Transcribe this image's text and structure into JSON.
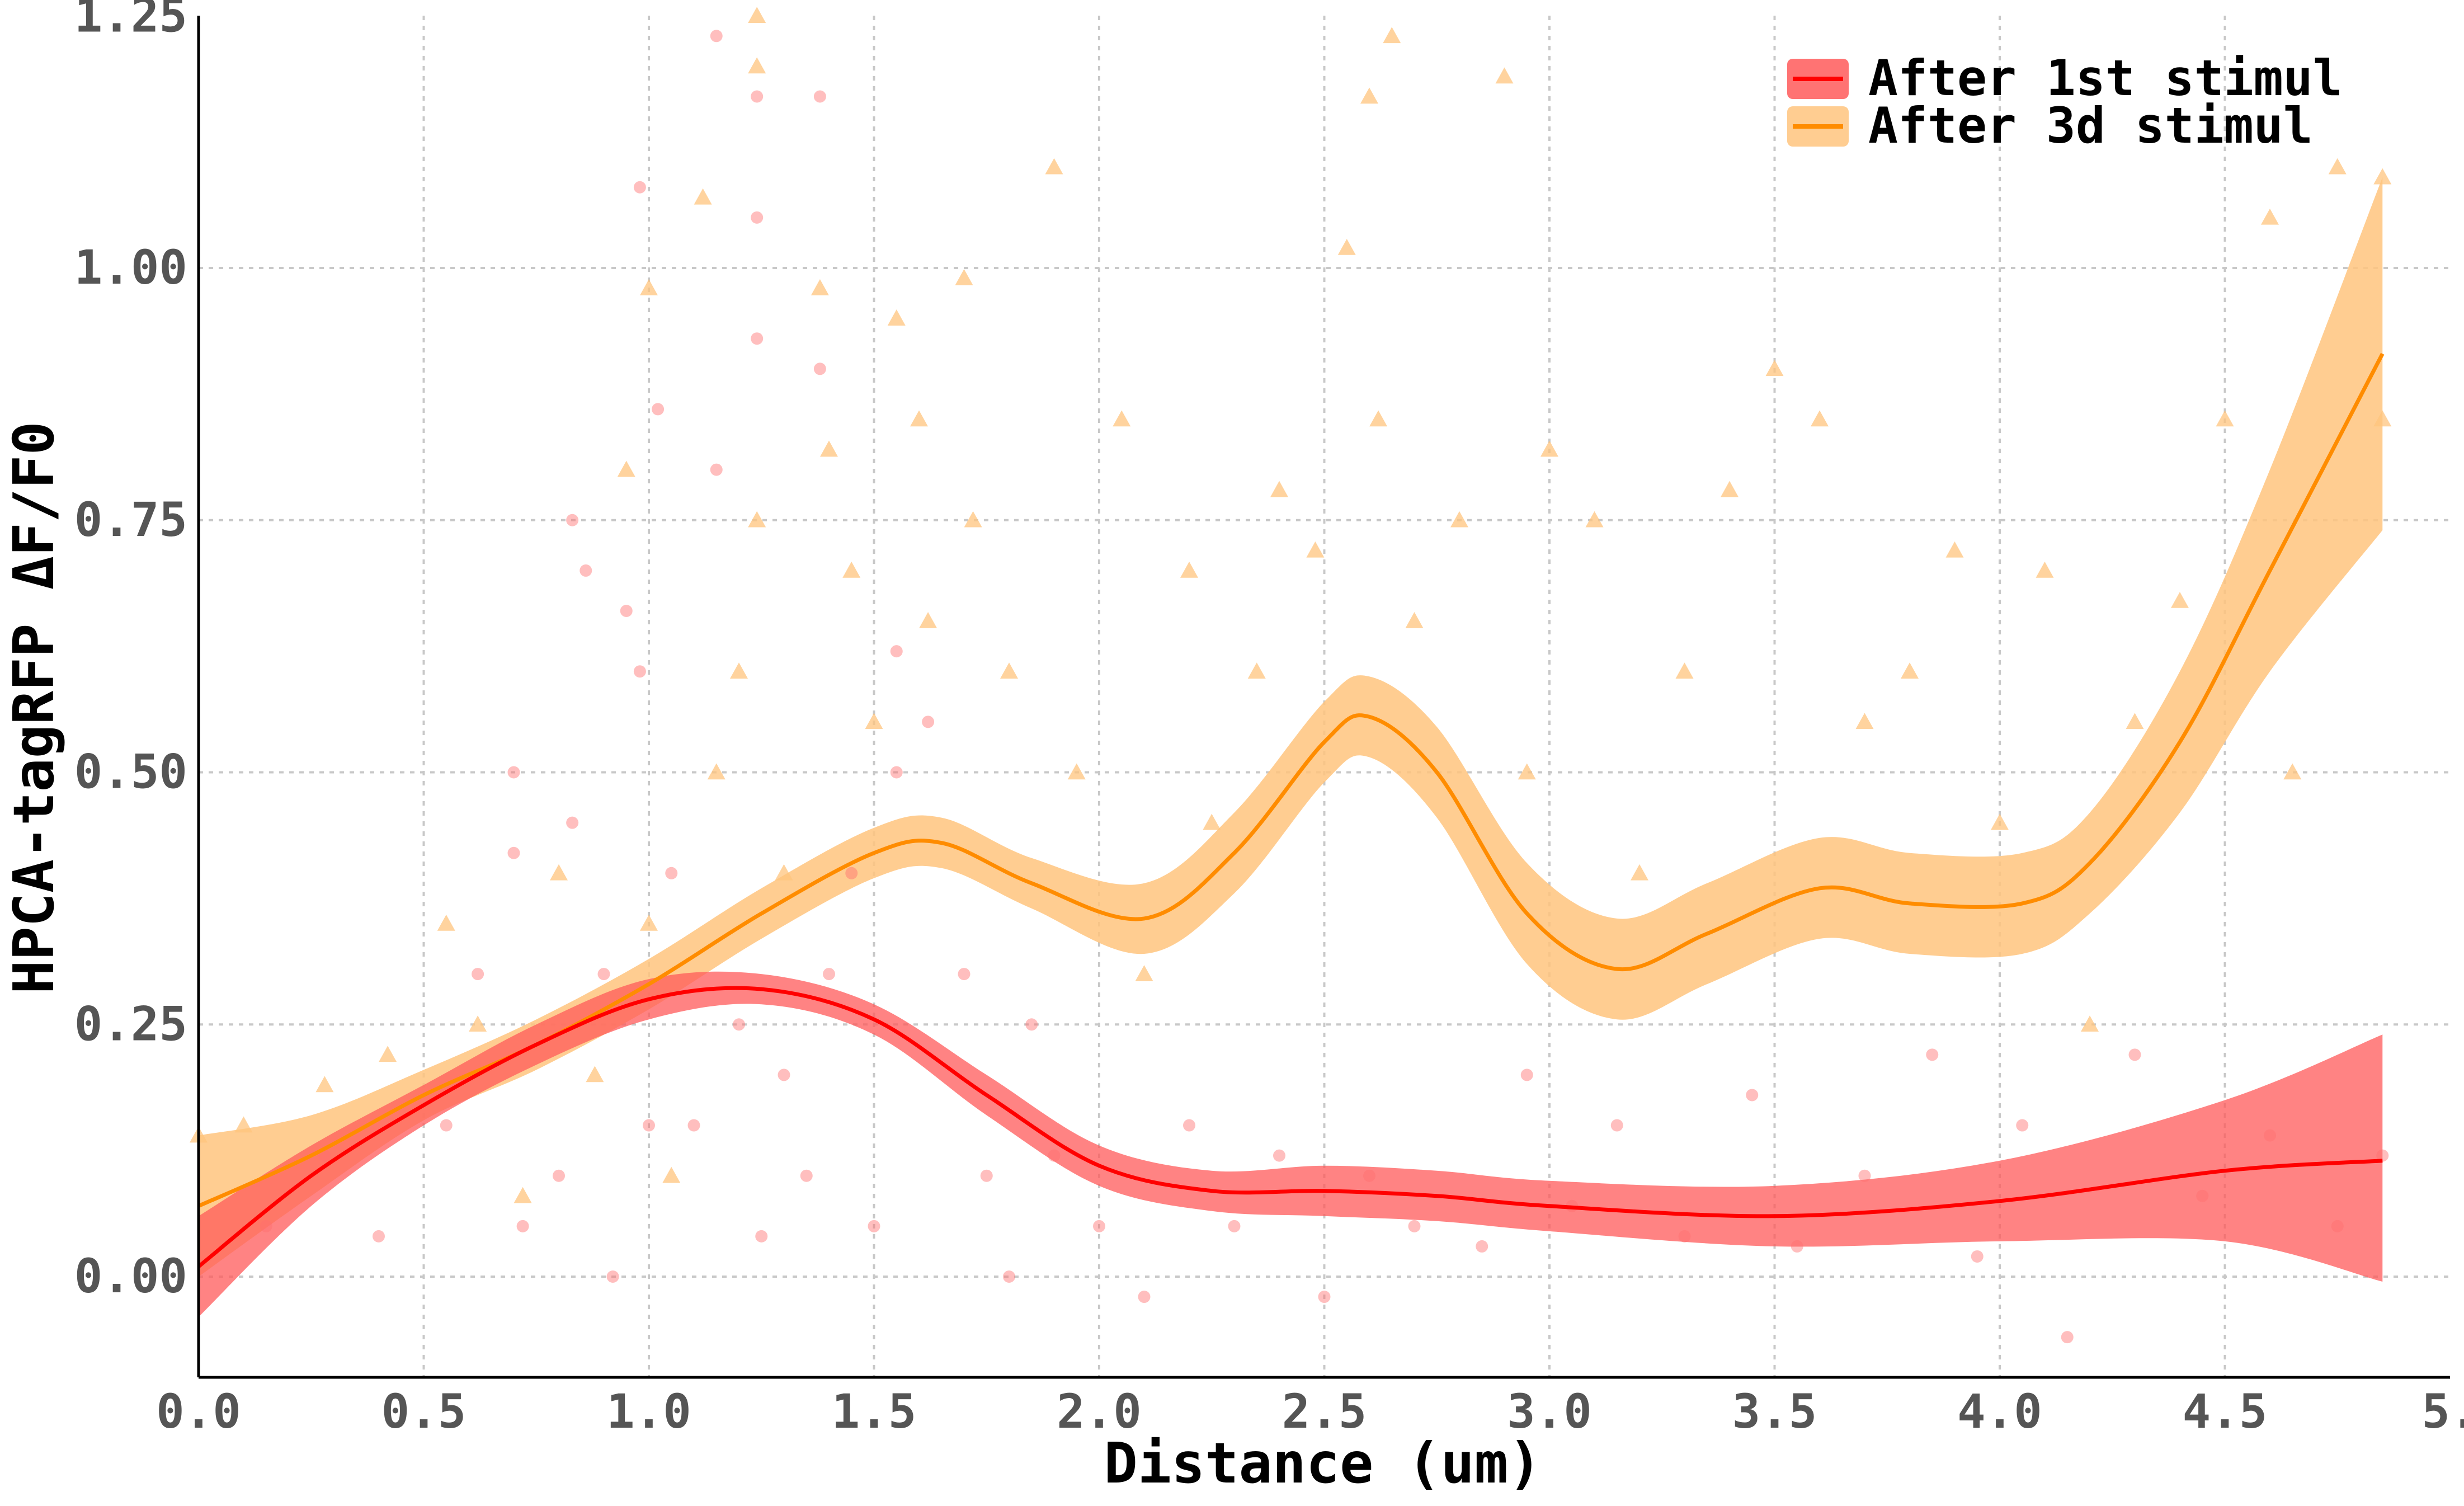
{
  "chart_data": {
    "type": "scatter",
    "title": "",
    "xlabel": "Distance (um)",
    "ylabel": "HPCA-tagRFP ΔF/F0",
    "xlim": [
      0.0,
      5.0
    ],
    "ylim": [
      -0.1,
      1.25
    ],
    "x_ticks": [
      "0.0",
      "0.5",
      "1.0",
      "1.5",
      "2.0",
      "2.5",
      "3.0",
      "3.5",
      "4.0",
      "4.5",
      "5."
    ],
    "y_ticks": [
      "0.00",
      "0.25",
      "0.50",
      "0.75",
      "1.00",
      "1.25"
    ],
    "grid": true,
    "legend_position": "top-right",
    "series": [
      {
        "name": "After 1st stimul",
        "color": "#ff0000",
        "band_color": "#ff5a5a",
        "marker": "circle",
        "fit": [
          [
            0.0,
            0.01
          ],
          [
            0.25,
            0.1
          ],
          [
            0.5,
            0.17
          ],
          [
            0.75,
            0.23
          ],
          [
            1.0,
            0.275
          ],
          [
            1.25,
            0.285
          ],
          [
            1.5,
            0.255
          ],
          [
            1.75,
            0.18
          ],
          [
            2.0,
            0.11
          ],
          [
            2.25,
            0.085
          ],
          [
            2.5,
            0.085
          ],
          [
            2.75,
            0.08
          ],
          [
            3.0,
            0.07
          ],
          [
            3.5,
            0.06
          ],
          [
            4.0,
            0.075
          ],
          [
            4.5,
            0.105
          ],
          [
            4.85,
            0.115
          ]
        ],
        "band_upper": [
          [
            0.0,
            0.06
          ],
          [
            0.25,
            0.13
          ],
          [
            0.5,
            0.19
          ],
          [
            0.75,
            0.25
          ],
          [
            1.0,
            0.295
          ],
          [
            1.25,
            0.3
          ],
          [
            1.5,
            0.27
          ],
          [
            1.75,
            0.2
          ],
          [
            2.0,
            0.13
          ],
          [
            2.25,
            0.105
          ],
          [
            2.5,
            0.11
          ],
          [
            2.75,
            0.105
          ],
          [
            3.0,
            0.095
          ],
          [
            3.5,
            0.09
          ],
          [
            4.0,
            0.115
          ],
          [
            4.5,
            0.175
          ],
          [
            4.85,
            0.24
          ]
        ],
        "band_lower": [
          [
            0.0,
            -0.04
          ],
          [
            0.25,
            0.07
          ],
          [
            0.5,
            0.15
          ],
          [
            0.75,
            0.21
          ],
          [
            1.0,
            0.255
          ],
          [
            1.25,
            0.27
          ],
          [
            1.5,
            0.24
          ],
          [
            1.75,
            0.16
          ],
          [
            2.0,
            0.09
          ],
          [
            2.25,
            0.065
          ],
          [
            2.5,
            0.06
          ],
          [
            2.75,
            0.055
          ],
          [
            3.0,
            0.045
          ],
          [
            3.5,
            0.03
          ],
          [
            4.0,
            0.035
          ],
          [
            4.5,
            0.035
          ],
          [
            4.85,
            -0.005
          ]
        ],
        "points": [
          [
            0.15,
            0.05
          ],
          [
            0.28,
            0.12
          ],
          [
            0.4,
            0.04
          ],
          [
            0.55,
            0.15
          ],
          [
            0.62,
            0.3
          ],
          [
            0.7,
            0.5
          ],
          [
            0.7,
            0.42
          ],
          [
            0.72,
            0.05
          ],
          [
            0.8,
            0.1
          ],
          [
            0.83,
            0.75
          ],
          [
            0.83,
            0.45
          ],
          [
            0.86,
            0.7
          ],
          [
            0.9,
            0.3
          ],
          [
            0.92,
            0.0
          ],
          [
            0.95,
            0.66
          ],
          [
            0.98,
            1.08
          ],
          [
            0.98,
            0.6
          ],
          [
            1.0,
            0.15
          ],
          [
            1.02,
            0.86
          ],
          [
            1.05,
            0.4
          ],
          [
            1.1,
            0.15
          ],
          [
            1.15,
            1.23
          ],
          [
            1.15,
            0.8
          ],
          [
            1.2,
            0.25
          ],
          [
            1.24,
            1.17
          ],
          [
            1.24,
            1.05
          ],
          [
            1.24,
            0.93
          ],
          [
            1.25,
            0.04
          ],
          [
            1.3,
            0.2
          ],
          [
            1.35,
            0.1
          ],
          [
            1.38,
            1.17
          ],
          [
            1.38,
            0.9
          ],
          [
            1.4,
            0.3
          ],
          [
            1.45,
            0.4
          ],
          [
            1.5,
            0.05
          ],
          [
            1.55,
            0.62
          ],
          [
            1.55,
            0.5
          ],
          [
            1.62,
            0.55
          ],
          [
            1.7,
            0.3
          ],
          [
            1.75,
            0.1
          ],
          [
            1.8,
            0.0
          ],
          [
            1.85,
            0.25
          ],
          [
            1.9,
            0.12
          ],
          [
            2.0,
            0.05
          ],
          [
            2.1,
            -0.02
          ],
          [
            2.2,
            0.15
          ],
          [
            2.3,
            0.05
          ],
          [
            2.4,
            0.12
          ],
          [
            2.5,
            -0.02
          ],
          [
            2.6,
            0.1
          ],
          [
            2.7,
            0.05
          ],
          [
            2.85,
            0.03
          ],
          [
            2.95,
            0.2
          ],
          [
            3.05,
            0.07
          ],
          [
            3.15,
            0.15
          ],
          [
            3.3,
            0.04
          ],
          [
            3.45,
            0.18
          ],
          [
            3.55,
            0.03
          ],
          [
            3.7,
            0.1
          ],
          [
            3.85,
            0.22
          ],
          [
            3.95,
            0.02
          ],
          [
            4.05,
            0.15
          ],
          [
            4.15,
            -0.06
          ],
          [
            4.3,
            0.22
          ],
          [
            4.45,
            0.08
          ],
          [
            4.6,
            0.14
          ],
          [
            4.75,
            0.05
          ],
          [
            4.85,
            0.12
          ]
        ]
      },
      {
        "name": "After 3d stimul",
        "color": "#ff8c00",
        "band_color": "#ffc47e",
        "marker": "triangle",
        "fit": [
          [
            0.0,
            0.07
          ],
          [
            0.25,
            0.12
          ],
          [
            0.5,
            0.18
          ],
          [
            0.75,
            0.23
          ],
          [
            1.0,
            0.29
          ],
          [
            1.25,
            0.36
          ],
          [
            1.5,
            0.42
          ],
          [
            1.65,
            0.43
          ],
          [
            1.85,
            0.39
          ],
          [
            2.1,
            0.355
          ],
          [
            2.3,
            0.42
          ],
          [
            2.5,
            0.53
          ],
          [
            2.6,
            0.555
          ],
          [
            2.75,
            0.5
          ],
          [
            2.95,
            0.36
          ],
          [
            3.15,
            0.305
          ],
          [
            3.35,
            0.34
          ],
          [
            3.6,
            0.385
          ],
          [
            3.8,
            0.37
          ],
          [
            4.05,
            0.37
          ],
          [
            4.2,
            0.41
          ],
          [
            4.4,
            0.53
          ],
          [
            4.6,
            0.7
          ],
          [
            4.85,
            0.915
          ]
        ],
        "band_upper": [
          [
            0.0,
            0.14
          ],
          [
            0.25,
            0.16
          ],
          [
            0.5,
            0.205
          ],
          [
            0.75,
            0.255
          ],
          [
            1.0,
            0.315
          ],
          [
            1.25,
            0.385
          ],
          [
            1.5,
            0.445
          ],
          [
            1.65,
            0.455
          ],
          [
            1.85,
            0.415
          ],
          [
            2.1,
            0.39
          ],
          [
            2.3,
            0.46
          ],
          [
            2.5,
            0.57
          ],
          [
            2.6,
            0.595
          ],
          [
            2.75,
            0.545
          ],
          [
            2.95,
            0.41
          ],
          [
            3.15,
            0.355
          ],
          [
            3.35,
            0.39
          ],
          [
            3.6,
            0.435
          ],
          [
            3.8,
            0.42
          ],
          [
            4.05,
            0.42
          ],
          [
            4.2,
            0.46
          ],
          [
            4.4,
            0.6
          ],
          [
            4.6,
            0.8
          ],
          [
            4.85,
            1.09
          ]
        ],
        "band_lower": [
          [
            0.0,
            0.0
          ],
          [
            0.25,
            0.08
          ],
          [
            0.5,
            0.155
          ],
          [
            0.75,
            0.205
          ],
          [
            1.0,
            0.265
          ],
          [
            1.25,
            0.335
          ],
          [
            1.5,
            0.395
          ],
          [
            1.65,
            0.405
          ],
          [
            1.85,
            0.365
          ],
          [
            2.1,
            0.32
          ],
          [
            2.3,
            0.38
          ],
          [
            2.5,
            0.49
          ],
          [
            2.6,
            0.515
          ],
          [
            2.75,
            0.455
          ],
          [
            2.95,
            0.31
          ],
          [
            3.15,
            0.255
          ],
          [
            3.35,
            0.29
          ],
          [
            3.6,
            0.335
          ],
          [
            3.8,
            0.32
          ],
          [
            4.05,
            0.32
          ],
          [
            4.2,
            0.36
          ],
          [
            4.4,
            0.46
          ],
          [
            4.6,
            0.6
          ],
          [
            4.85,
            0.74
          ]
        ],
        "points": [
          [
            0.0,
            0.14
          ],
          [
            0.1,
            0.15
          ],
          [
            0.28,
            0.19
          ],
          [
            0.42,
            0.22
          ],
          [
            0.55,
            0.35
          ],
          [
            0.62,
            0.25
          ],
          [
            0.72,
            0.08
          ],
          [
            0.8,
            0.4
          ],
          [
            0.88,
            0.2
          ],
          [
            0.95,
            0.8
          ],
          [
            1.0,
            0.98
          ],
          [
            1.0,
            0.35
          ],
          [
            1.05,
            0.1
          ],
          [
            1.12,
            1.07
          ],
          [
            1.15,
            0.5
          ],
          [
            1.2,
            0.6
          ],
          [
            1.24,
            1.25
          ],
          [
            1.24,
            1.2
          ],
          [
            1.24,
            0.75
          ],
          [
            1.3,
            0.4
          ],
          [
            1.38,
            0.98
          ],
          [
            1.4,
            0.82
          ],
          [
            1.45,
            0.7
          ],
          [
            1.5,
            0.55
          ],
          [
            1.55,
            0.95
          ],
          [
            1.6,
            0.85
          ],
          [
            1.62,
            0.65
          ],
          [
            1.7,
            0.99
          ],
          [
            1.72,
            0.75
          ],
          [
            1.8,
            0.6
          ],
          [
            1.9,
            1.1
          ],
          [
            1.95,
            0.5
          ],
          [
            2.05,
            0.85
          ],
          [
            2.1,
            0.3
          ],
          [
            2.2,
            0.7
          ],
          [
            2.25,
            0.45
          ],
          [
            2.35,
            0.6
          ],
          [
            2.4,
            0.78
          ],
          [
            2.48,
            0.72
          ],
          [
            2.55,
            1.02
          ],
          [
            2.6,
            1.17
          ],
          [
            2.62,
            0.85
          ],
          [
            2.65,
            1.23
          ],
          [
            2.7,
            0.65
          ],
          [
            2.8,
            0.75
          ],
          [
            2.9,
            1.19
          ],
          [
            2.95,
            0.5
          ],
          [
            3.0,
            0.82
          ],
          [
            3.1,
            0.75
          ],
          [
            3.2,
            0.4
          ],
          [
            3.3,
            0.6
          ],
          [
            3.4,
            0.78
          ],
          [
            3.5,
            0.9
          ],
          [
            3.6,
            0.85
          ],
          [
            3.7,
            0.55
          ],
          [
            3.8,
            0.6
          ],
          [
            3.9,
            0.72
          ],
          [
            4.0,
            0.45
          ],
          [
            4.1,
            0.7
          ],
          [
            4.2,
            0.25
          ],
          [
            4.3,
            0.55
          ],
          [
            4.4,
            0.67
          ],
          [
            4.5,
            0.85
          ],
          [
            4.6,
            1.05
          ],
          [
            4.65,
            0.5
          ],
          [
            4.75,
            1.1
          ],
          [
            4.85,
            1.09
          ],
          [
            4.85,
            0.85
          ]
        ]
      }
    ]
  }
}
